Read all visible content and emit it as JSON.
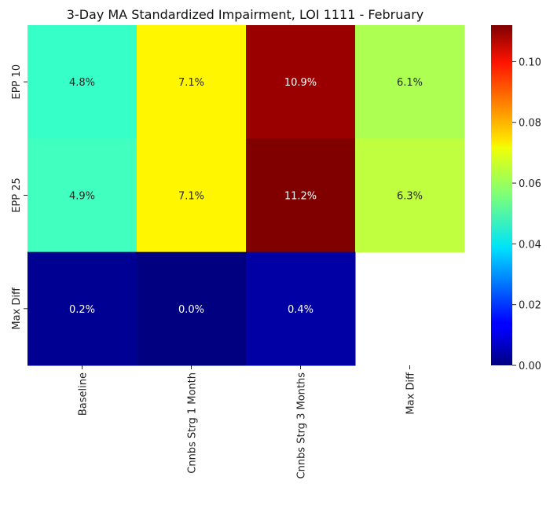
{
  "chart_data": {
    "type": "heatmap",
    "title": "3-Day MA Standardized Impairment, LOI 1111 - February",
    "xlabel": "",
    "ylabel": "",
    "x_categories": [
      "Baseline",
      "Cnnbs Strg 1 Month",
      "Cnnbs Strg 3 Months",
      "Max Diff"
    ],
    "y_categories": [
      "EPP 10",
      "EPP 25",
      "Max Diff"
    ],
    "values": [
      [
        0.048,
        0.071,
        0.109,
        0.061
      ],
      [
        0.049,
        0.071,
        0.112,
        0.063
      ],
      [
        0.002,
        0.0,
        0.004,
        null
      ]
    ],
    "cell_labels": [
      [
        "4.8%",
        "7.1%",
        "10.9%",
        "6.1%"
      ],
      [
        "4.9%",
        "7.1%",
        "11.2%",
        "6.3%"
      ],
      [
        "0.2%",
        "0.0%",
        "0.4%",
        ""
      ]
    ],
    "colormap": "jet",
    "colorbar": {
      "vmin": 0.0,
      "vmax": 0.112,
      "ticks": [
        0.0,
        0.02,
        0.04,
        0.06,
        0.08,
        0.1
      ],
      "tick_labels": [
        "0.00",
        "0.02",
        "0.04",
        "0.06",
        "0.08",
        "0.10"
      ]
    },
    "grid": false,
    "legend": "colorbar-right"
  }
}
